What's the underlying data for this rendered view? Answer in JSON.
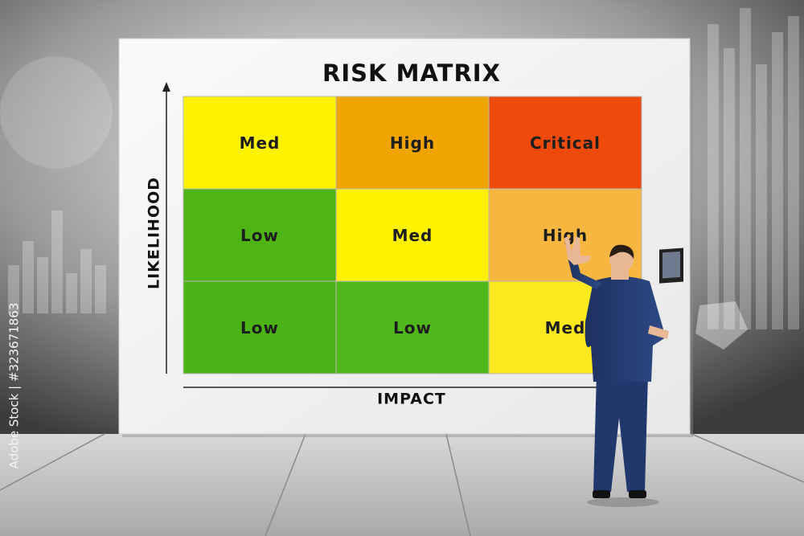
{
  "title": "RISK MATRIX",
  "y_axis_label": "LIKELIHOOD",
  "x_axis_label": "IMPACT",
  "matrix": {
    "rows": [
      [
        "Med",
        "High",
        "Critical"
      ],
      [
        "Low",
        "Med",
        "High"
      ],
      [
        "Low",
        "Low",
        "Med"
      ]
    ]
  },
  "watermark": "Adobe Stock | #323671863"
}
